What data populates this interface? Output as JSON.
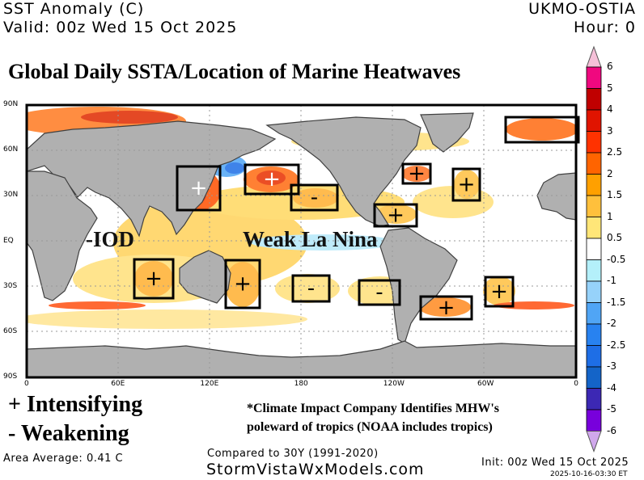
{
  "header": {
    "variable": "SST Anomaly (C)",
    "valid": "Valid: 00z Wed 15 Oct 2025",
    "source": "UKMO-OSTIA",
    "hour": "Hour: 0"
  },
  "title": "Global Daily SSTA/Location of Marine Heatwaves",
  "map": {
    "lat_labels": [
      "90N",
      "60N",
      "30N",
      "EQ",
      "30S",
      "60S",
      "90S"
    ],
    "lon_labels": [
      "0",
      "60E",
      "120E",
      "180",
      "120W",
      "60W",
      "0",
      "60E"
    ],
    "annotations": {
      "iod": "-IOD",
      "enso": "Weak La Nina"
    },
    "heatwave_boxes": [
      {
        "region": "japan",
        "sign": "+",
        "sign_color": "#ffffff"
      },
      {
        "region": "north-pacific",
        "sign": "+",
        "sign_color": "#ffffff"
      },
      {
        "region": "northeast-pacific",
        "sign": "-",
        "sign_color": "#000000"
      },
      {
        "region": "northwest-atlantic",
        "sign": "+",
        "sign_color": "#000000"
      },
      {
        "region": "north-atlantic",
        "sign": "+",
        "sign_color": "#000000"
      },
      {
        "region": "barents-sea",
        "sign": "",
        "sign_color": "#000000"
      },
      {
        "region": "caribbean",
        "sign": "+",
        "sign_color": "#000000"
      },
      {
        "region": "south-indian",
        "sign": "+",
        "sign_color": "#000000"
      },
      {
        "region": "tasman-sea",
        "sign": "+",
        "sign_color": "#000000"
      },
      {
        "region": "south-pacific-west",
        "sign": "-",
        "sign_color": "#000000"
      },
      {
        "region": "south-pacific-east",
        "sign": "-",
        "sign_color": "#000000"
      },
      {
        "region": "southwest-atlantic",
        "sign": "+",
        "sign_color": "#000000"
      },
      {
        "region": "southeast-atlantic",
        "sign": "+",
        "sign_color": "#000000"
      }
    ]
  },
  "colorbar": {
    "labels": [
      "6",
      "5",
      "4",
      "3",
      "2.5",
      "2",
      "1.5",
      "1",
      "0.5",
      "-0.5",
      "-1",
      "-1.5",
      "-2",
      "-2.5",
      "-3",
      "-4",
      "-5",
      "-6"
    ],
    "colors": [
      "#f0087f",
      "#c00000",
      "#e01400",
      "#ff3200",
      "#ff6400",
      "#ffa000",
      "#ffc03c",
      "#ffe678",
      "#ffffff",
      "#b4f0fa",
      "#96d2fa",
      "#50a5f5",
      "#2882f0",
      "#1e6ee6",
      "#1464c8",
      "#3c28b4",
      "#7800dc"
    ],
    "top_arrow_color": "#f5c0d8",
    "bottom_arrow_color": "#d0a8ec"
  },
  "legend": {
    "intensifying": "+ Intensifying",
    "weakening": "- Weakening",
    "note_line1": "*Climate Impact Company Identifies MHW's",
    "note_line2": "poleward of tropics (NOAA includes tropics)"
  },
  "footer": {
    "area_average": "Area Average: 0.41 C",
    "compared": "Compared to 30Y (1991-2020)",
    "site": "StormVistaWxModels.com",
    "init": "Init: 00z Wed 15 Oct 2025",
    "generated": "2025-10-16-03:30 ET"
  }
}
